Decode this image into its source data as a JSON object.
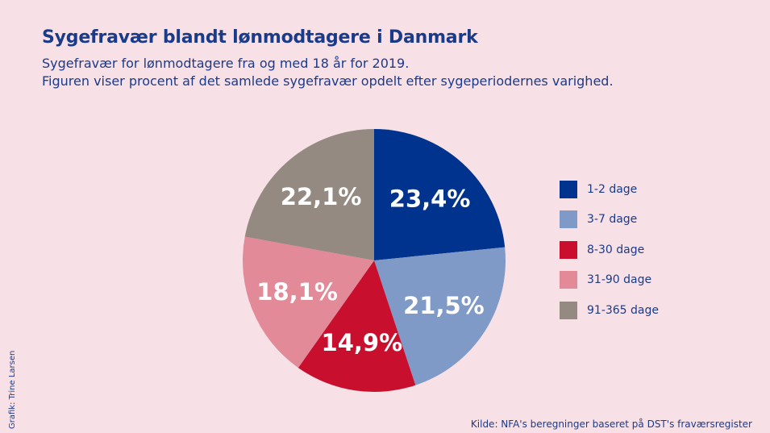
{
  "header": {
    "title": "Sygefravær blandt lønmodtagere i Danmark",
    "subtitle_line1": "Sygefravær for lønmodtagere fra og med 18 år for 2019.",
    "subtitle_line2": "Figuren viser procent af det samlede sygefravær opdelt efter sygeperiodernes varighed."
  },
  "chart_data": {
    "type": "pie",
    "title": "Sygefravær blandt lønmodtagere i Danmark",
    "categories": [
      "1-2 dage",
      "3-7 dage",
      "8-30 dage",
      "31-90 dage",
      "91-365 dage"
    ],
    "values": [
      23.4,
      21.5,
      14.9,
      18.1,
      22.1
    ],
    "value_labels": [
      "23,4%",
      "21,5%",
      "14,9%",
      "18,1%",
      "22,1%"
    ],
    "colors": [
      "#00338d",
      "#7f9ac6",
      "#c8102e",
      "#e38a99",
      "#948a82"
    ],
    "start": "top, clockwise",
    "legend_position": "right"
  },
  "footer": {
    "credit": "Grafik: Trine Larsen",
    "source": "Kilde: NFA's beregninger baseret på DST's fraværsregister"
  }
}
